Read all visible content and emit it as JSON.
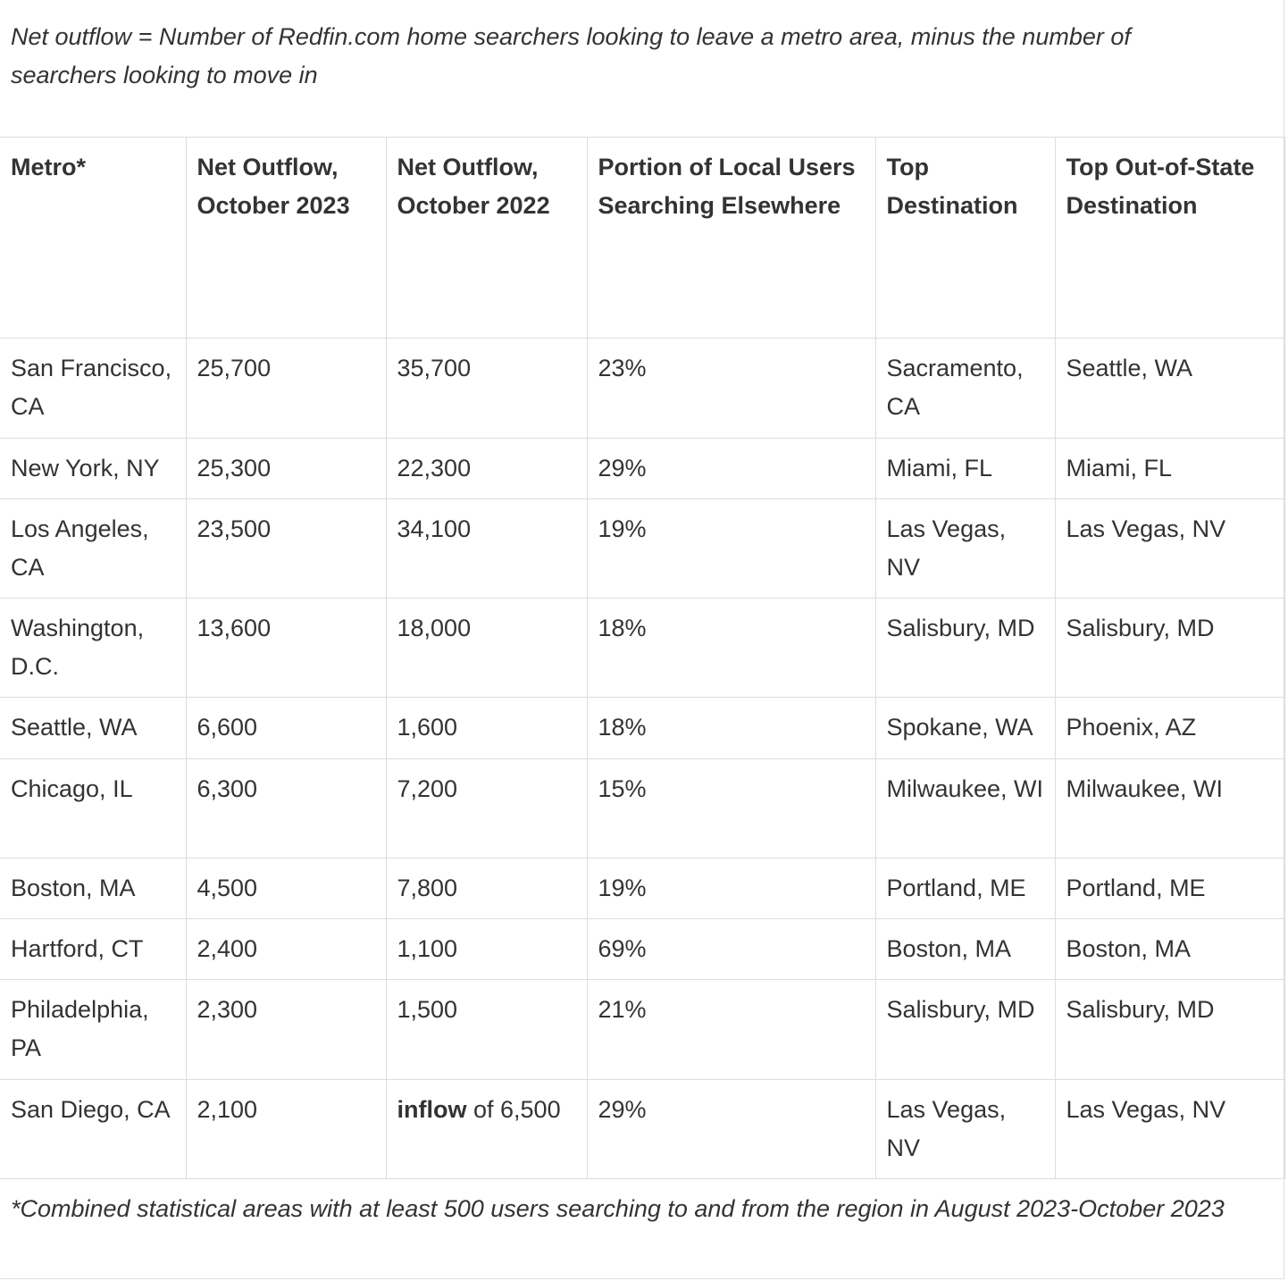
{
  "note": "Net outflow = Number of Redfin.com home searchers looking to leave a metro area, minus the number of searchers looking to move in",
  "table": {
    "header": [
      "Metro*",
      "Net Outflow, October 2023",
      "Net Outflow, October 2022",
      "Portion of Local Users Searching Elsewhere",
      "Top Destination",
      "Top Out-of-State Destination"
    ],
    "rows": [
      [
        "San Francisco, CA",
        "25,700",
        "35,700",
        "23%",
        "Sacramento, CA",
        "Seattle, WA"
      ],
      [
        "New York, NY",
        "25,300",
        "22,300",
        "29%",
        "Miami, FL",
        "Miami, FL"
      ],
      [
        "Los Angeles, CA",
        "23,500",
        "34,100",
        "19%",
        "Las Vegas, NV",
        "Las Vegas, NV"
      ],
      [
        "Washington, D.C.",
        "13,600",
        "18,000",
        "18%",
        "Salisbury, MD",
        "Salisbury, MD"
      ],
      [
        "Seattle, WA",
        "6,600",
        "1,600",
        "18%",
        "Spokane, WA",
        "Phoenix, AZ"
      ],
      [
        "Chicago, IL",
        "6,300",
        "7,200",
        "15%",
        "Milwaukee, WI",
        "Milwaukee, WI"
      ],
      [
        "Boston, MA",
        "4,500",
        "7,800",
        "19%",
        "Portland, ME",
        "Portland, ME"
      ],
      [
        "Hartford, CT",
        "2,400",
        "1,100",
        "69%",
        "Boston, MA",
        "Boston, MA"
      ],
      [
        "Philadelphia, PA",
        "2,300",
        "1,500",
        "21%",
        "Salisbury, MD",
        "Salisbury, MD"
      ],
      [
        "San Diego, CA",
        "2,100",
        {
          "bold": "inflow",
          "text": "of 6,500"
        },
        "29%",
        "Las Vegas, NV",
        "Las Vegas, NV"
      ]
    ]
  },
  "footnote": "*Combined statistical areas with at least 500 users searching to and from the region in August 2023-October 2023"
}
